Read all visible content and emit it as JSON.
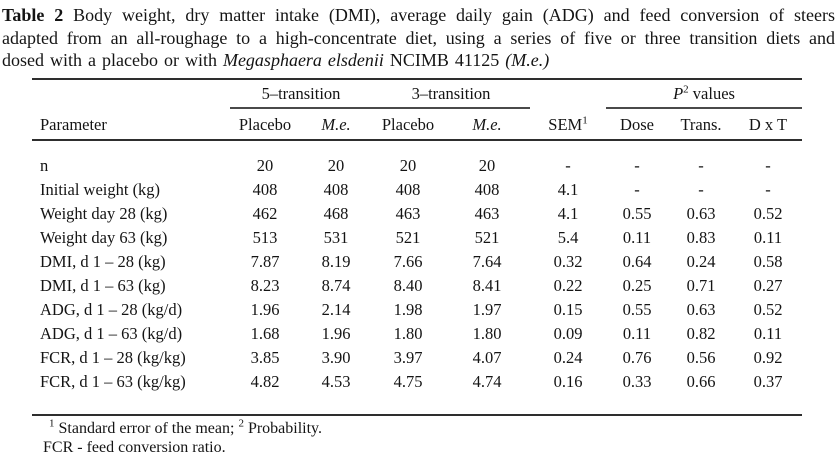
{
  "caption": {
    "label": "Table 2",
    "body": " Body weight, dry matter intake (DMI), average daily gain (ADG) and feed conversion of steers adapted from an all-roughage to a high-concentrate diet, using a series of five or three transition diets and dosed with a placebo or with ",
    "species": "Megasphaera elsdenii",
    "strain": " NCIMB 41125 ",
    "abbrev": "(M.e.)"
  },
  "table": {
    "groups": {
      "five_transition": "5–transition",
      "three_transition": "3–transition",
      "p_symbol": "P",
      "p_sup": "2",
      "p_rest": " values"
    },
    "headers": {
      "parameter": "Parameter",
      "placebo_5": "Placebo",
      "me_5": "M.e.",
      "placebo_3": "Placebo",
      "me_3": "M.e.",
      "sem": "SEM",
      "sem_sup": "1",
      "dose": "Dose",
      "trans": "Trans.",
      "dxt": "D x T"
    },
    "rows": [
      {
        "parameter": "n",
        "values": [
          "20",
          "20",
          "20",
          "20",
          "-",
          "-",
          "-",
          "-"
        ]
      },
      {
        "parameter": "Initial weight (kg)",
        "values": [
          "408",
          "408",
          "408",
          "408",
          "4.1",
          "-",
          "-",
          "-"
        ]
      },
      {
        "parameter": "Weight day 28 (kg)",
        "values": [
          "462",
          "468",
          "463",
          "463",
          "4.1",
          "0.55",
          "0.63",
          "0.52"
        ]
      },
      {
        "parameter": "Weight day 63 (kg)",
        "values": [
          "513",
          "531",
          "521",
          "521",
          "5.4",
          "0.11",
          "0.83",
          "0.11"
        ]
      },
      {
        "parameter": "DMI, d 1 – 28 (kg)",
        "values": [
          "7.87",
          "8.19",
          "7.66",
          "7.64",
          "0.32",
          "0.64",
          "0.24",
          "0.58"
        ]
      },
      {
        "parameter": "DMI, d 1 – 63 (kg)",
        "values": [
          "8.23",
          "8.74",
          "8.40",
          "8.41",
          "0.22",
          "0.25",
          "0.71",
          "0.27"
        ]
      },
      {
        "parameter": "ADG, d 1 – 28 (kg/d)",
        "values": [
          "1.96",
          "2.14",
          "1.98",
          "1.97",
          "0.15",
          "0.55",
          "0.63",
          "0.52"
        ]
      },
      {
        "parameter": "ADG, d 1 – 63 (kg/d)",
        "values": [
          "1.68",
          "1.96",
          "1.80",
          "1.80",
          "0.09",
          "0.11",
          "0.82",
          "0.11"
        ]
      },
      {
        "parameter": "FCR, d 1 – 28 (kg/kg)",
        "values": [
          "3.85",
          "3.90",
          "3.97",
          "4.07",
          "0.24",
          "0.76",
          "0.56",
          "0.92"
        ]
      },
      {
        "parameter": "FCR, d 1 – 63 (kg/kg)",
        "values": [
          "4.82",
          "4.53",
          "4.75",
          "4.74",
          "0.16",
          "0.33",
          "0.66",
          "0.37"
        ]
      }
    ]
  },
  "footnotes": {
    "sup1": "1",
    "note1a": " Standard error of the mean; ",
    "sup2": "2",
    "note1b": " Probability.",
    "note2": "FCR - feed conversion ratio."
  },
  "colors": {
    "text": "#141414",
    "rule": "#2e2e2e",
    "group_rule": "#4a4a4a",
    "background": "#ffffff"
  }
}
